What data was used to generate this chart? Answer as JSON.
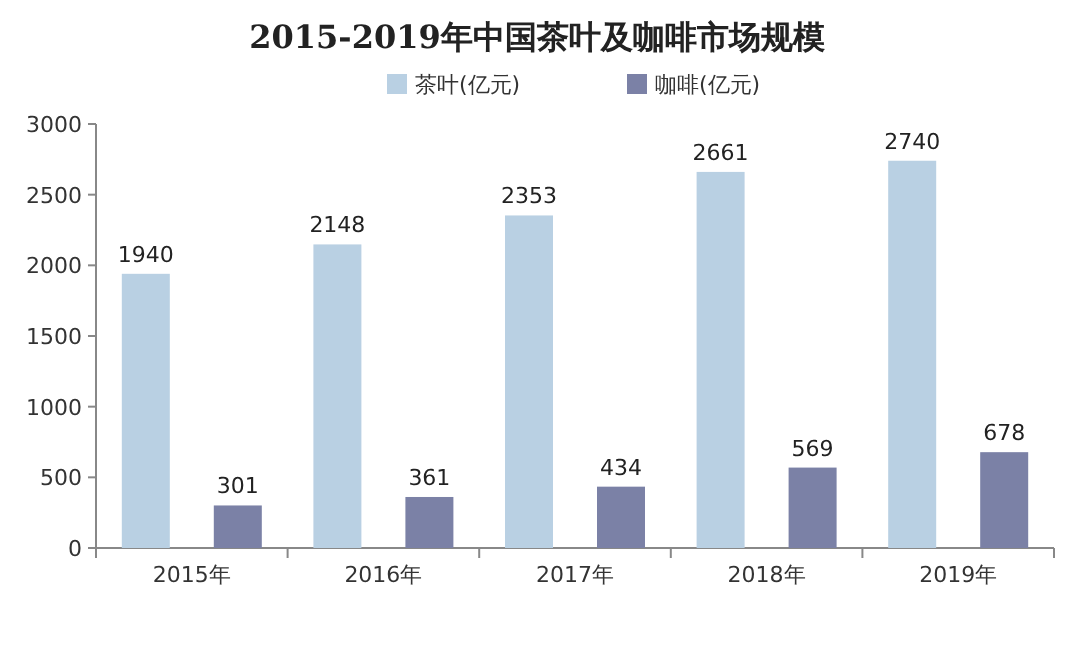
{
  "chart_data": {
    "type": "bar",
    "title": "2015-2019年中国茶叶及咖啡市场规模",
    "categories": [
      "2015年",
      "2016年",
      "2017年",
      "2018年",
      "2019年"
    ],
    "series": [
      {
        "name": "茶叶(亿元)",
        "color": "#b9d0e3",
        "values": [
          1940,
          2148,
          2353,
          2661,
          2740
        ]
      },
      {
        "name": "咖啡(亿元)",
        "color": "#7b81a6",
        "values": [
          301,
          361,
          434,
          569,
          678
        ]
      }
    ],
    "ylim": [
      0,
      3000
    ],
    "yticks": [
      0,
      500,
      1000,
      1500,
      2000,
      2500,
      3000
    ],
    "legend": "top",
    "data_labels": true
  }
}
